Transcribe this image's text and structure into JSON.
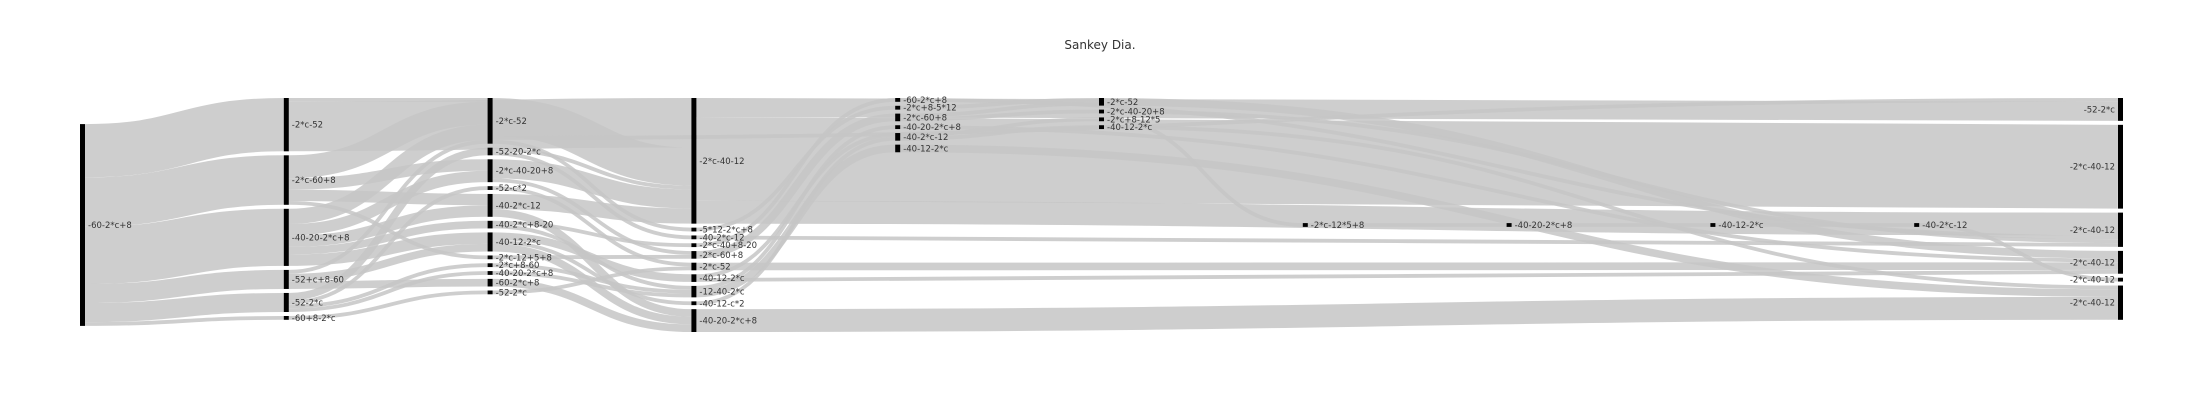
{
  "chart_data": {
    "type": "sankey",
    "title": "Sankey Dia.",
    "colors": {
      "link": "#c6c6c6",
      "node": "#000000",
      "text": "#333333"
    },
    "columns": [
      [
        {
          "id": "c0a",
          "label": "-60-2*c+8"
        }
      ],
      [
        {
          "id": "c1a",
          "label": "-2*c-52"
        },
        {
          "id": "c1b",
          "label": "-2*c-60+8"
        },
        {
          "id": "c1c",
          "label": "-40-20-2*c+8"
        },
        {
          "id": "c1d",
          "label": "-52+c+8-60"
        },
        {
          "id": "c1e",
          "label": "-52-2*c"
        },
        {
          "id": "c1f",
          "label": "-60+8-2*c"
        }
      ],
      [
        {
          "id": "c2a",
          "label": "-2*c-52"
        },
        {
          "id": "c2b",
          "label": "-52-20-2*c"
        },
        {
          "id": "c2c",
          "label": "-2*c-40-20+8"
        },
        {
          "id": "c2d",
          "label": "-52-c*2"
        },
        {
          "id": "c2e",
          "label": "-40-2*c-12"
        },
        {
          "id": "c2f",
          "label": "-40-2*c+8-20"
        },
        {
          "id": "c2g",
          "label": "-40-12-2*c"
        },
        {
          "id": "c2h",
          "label": "-2*c-12+5+8"
        },
        {
          "id": "c2i",
          "label": "-2*c+8-60"
        },
        {
          "id": "c2j",
          "label": "-40-20-2*c+8"
        },
        {
          "id": "c2k",
          "label": "-60-2*c+8"
        },
        {
          "id": "c2l",
          "label": "-52-2*c"
        }
      ],
      [
        {
          "id": "c3a",
          "label": "-2*c-40-12"
        },
        {
          "id": "c3b",
          "label": "-5*12-2*c+8"
        },
        {
          "id": "c3c",
          "label": "-40-2*c-12"
        },
        {
          "id": "c3d",
          "label": "-2*c-40+8-20"
        },
        {
          "id": "c3e",
          "label": "-2*c-60+8"
        },
        {
          "id": "c3f",
          "label": "-2*c-52"
        },
        {
          "id": "c3g",
          "label": "-40-12-2*c"
        },
        {
          "id": "c3h",
          "label": "-12-40-2*c"
        },
        {
          "id": "c3i",
          "label": "-40-12-c*2"
        },
        {
          "id": "c3j",
          "label": "-40-20-2*c+8"
        }
      ],
      [
        {
          "id": "c4a",
          "label": "-60-2*c+8"
        },
        {
          "id": "c4b",
          "label": "-2*c+8-5*12"
        },
        {
          "id": "c4c",
          "label": "-2*c-60+8"
        },
        {
          "id": "c4d",
          "label": "-40-20-2*c+8"
        },
        {
          "id": "c4e",
          "label": "-40-2*c-12"
        },
        {
          "id": "c4f",
          "label": "-40-12-2*c"
        }
      ],
      [
        {
          "id": "c5a",
          "label": "-2*c-52"
        },
        {
          "id": "c5b",
          "label": "-2*c-40-20+8"
        },
        {
          "id": "c5c",
          "label": "-2*c+8-12*5"
        },
        {
          "id": "c5d",
          "label": "-40-12-2*c"
        }
      ],
      [
        {
          "id": "c6a",
          "label": "-2*c-12*5+8"
        }
      ],
      [
        {
          "id": "c7a",
          "label": "-40-20-2*c+8"
        }
      ],
      [
        {
          "id": "c8a",
          "label": "-40-12-2*c"
        }
      ],
      [
        {
          "id": "c9a",
          "label": "-40-2*c-12"
        }
      ],
      [
        {
          "id": "c10a",
          "label": "-52-2*c"
        },
        {
          "id": "c10b",
          "label": "-2*c-40-12"
        },
        {
          "id": "c10c",
          "label": "-2*c-40-12"
        },
        {
          "id": "c10d",
          "label": "-2*c-40-12"
        },
        {
          "id": "c10e",
          "label": "-2*c-40-12"
        },
        {
          "id": "c10f",
          "label": "-2*c-40-12"
        }
      ]
    ],
    "links": [
      {
        "source": "c0a",
        "target": "c1a",
        "value": 14
      },
      {
        "source": "c0a",
        "target": "c1b",
        "value": 13
      },
      {
        "source": "c0a",
        "target": "c1c",
        "value": 15
      },
      {
        "source": "c0a",
        "target": "c1d",
        "value": 5
      },
      {
        "source": "c0a",
        "target": "c1e",
        "value": 5
      },
      {
        "source": "c0a",
        "target": "c1f",
        "value": 1
      },
      {
        "source": "c1a",
        "target": "c2a",
        "value": 1
      },
      {
        "source": "c1a",
        "target": "c3a",
        "value": 13
      },
      {
        "source": "c1b",
        "target": "c2a",
        "value": 6
      },
      {
        "source": "c1b",
        "target": "c2c",
        "value": 3
      },
      {
        "source": "c1b",
        "target": "c2e",
        "value": 3
      },
      {
        "source": "c1b",
        "target": "c2h",
        "value": 1
      },
      {
        "source": "c1c",
        "target": "c2a",
        "value": 4
      },
      {
        "source": "c1c",
        "target": "c2c",
        "value": 3
      },
      {
        "source": "c1c",
        "target": "c2e",
        "value": 3
      },
      {
        "source": "c1c",
        "target": "c2f",
        "value": 2
      },
      {
        "source": "c1c",
        "target": "c2g",
        "value": 3
      },
      {
        "source": "c1d",
        "target": "c2a",
        "value": 1
      },
      {
        "source": "c1d",
        "target": "c2g",
        "value": 2
      },
      {
        "source": "c1d",
        "target": "c2k",
        "value": 2
      },
      {
        "source": "c1e",
        "target": "c2b",
        "value": 2
      },
      {
        "source": "c1e",
        "target": "c2d",
        "value": 1
      },
      {
        "source": "c1e",
        "target": "c2i",
        "value": 1
      },
      {
        "source": "c1e",
        "target": "c2j",
        "value": 1
      },
      {
        "source": "c1f",
        "target": "c2l",
        "value": 1
      },
      {
        "source": "c2a",
        "target": "c3a",
        "value": 10
      },
      {
        "source": "c2a",
        "target": "c3b",
        "value": 1
      },
      {
        "source": "c2a",
        "target": "c10a",
        "value": 1
      },
      {
        "source": "c2b",
        "target": "c3a",
        "value": 1
      },
      {
        "source": "c2b",
        "target": "c3c",
        "value": 1
      },
      {
        "source": "c2c",
        "target": "c3a",
        "value": 5
      },
      {
        "source": "c2c",
        "target": "c3e",
        "value": 1
      },
      {
        "source": "c2d",
        "target": "c3f",
        "value": 1
      },
      {
        "source": "c2e",
        "target": "c3a",
        "value": 4
      },
      {
        "source": "c2e",
        "target": "c3j",
        "value": 2
      },
      {
        "source": "c2f",
        "target": "c3d",
        "value": 1
      },
      {
        "source": "c2f",
        "target": "c3h",
        "value": 1
      },
      {
        "source": "c2g",
        "target": "c3g",
        "value": 2
      },
      {
        "source": "c2g",
        "target": "c3i",
        "value": 1
      },
      {
        "source": "c2g",
        "target": "c3j",
        "value": 2
      },
      {
        "source": "c2h",
        "target": "c3e",
        "value": 1
      },
      {
        "source": "c2i",
        "target": "c3h",
        "value": 1
      },
      {
        "source": "c2j",
        "target": "c3h",
        "value": 1
      },
      {
        "source": "c2k",
        "target": "c3j",
        "value": 2
      },
      {
        "source": "c2l",
        "target": "c3f",
        "value": 1
      },
      {
        "source": "c3a",
        "target": "c10b",
        "value": 22
      },
      {
        "source": "c3a",
        "target": "c10c",
        "value": 6
      },
      {
        "source": "c3a",
        "target": "c10a",
        "value": 5
      },
      {
        "source": "c3b",
        "target": "c4b",
        "value": 1
      },
      {
        "source": "c3c",
        "target": "c10c",
        "value": 1
      },
      {
        "source": "c3d",
        "target": "c4a",
        "value": 1
      },
      {
        "source": "c3e",
        "target": "c4c",
        "value": 2
      },
      {
        "source": "c3f",
        "target": "c10d",
        "value": 2
      },
      {
        "source": "c3g",
        "target": "c10d",
        "value": 1
      },
      {
        "source": "c3g",
        "target": "c4e",
        "value": 1
      },
      {
        "source": "c3h",
        "target": "c4d",
        "value": 1
      },
      {
        "source": "c3h",
        "target": "c4f",
        "value": 2
      },
      {
        "source": "c3i",
        "target": "c4e",
        "value": 1
      },
      {
        "source": "c3j",
        "target": "c10f",
        "value": 6
      },
      {
        "source": "c4a",
        "target": "c10c",
        "value": 1
      },
      {
        "source": "c4b",
        "target": "c5a",
        "value": 1
      },
      {
        "source": "c4c",
        "target": "c5a",
        "value": 1
      },
      {
        "source": "c4c",
        "target": "c5b",
        "value": 1
      },
      {
        "source": "c4d",
        "target": "c10d",
        "value": 1
      },
      {
        "source": "c4e",
        "target": "c5c",
        "value": 1
      },
      {
        "source": "c4e",
        "target": "c5d",
        "value": 1
      },
      {
        "source": "c4f",
        "target": "c10f",
        "value": 2
      },
      {
        "source": "c5a",
        "target": "c10d",
        "value": 2
      },
      {
        "source": "c5b",
        "target": "c10c",
        "value": 1
      },
      {
        "source": "c5c",
        "target": "c6a",
        "value": 1
      },
      {
        "source": "c5d",
        "target": "c10f",
        "value": 1
      },
      {
        "source": "c6a",
        "target": "c7a",
        "value": 1
      },
      {
        "source": "c7a",
        "target": "c8a",
        "value": 1
      },
      {
        "source": "c8a",
        "target": "c9a",
        "value": 1
      },
      {
        "source": "c9a",
        "target": "c10e",
        "value": 1
      }
    ]
  }
}
